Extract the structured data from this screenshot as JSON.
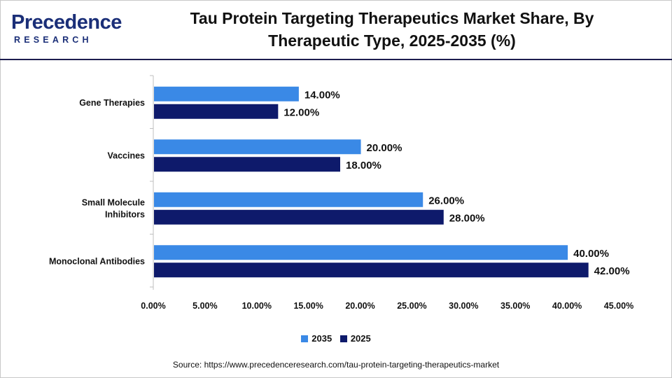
{
  "header": {
    "logo_word": "Precedence",
    "logo_sub": "RESEARCH",
    "title_line1": "Tau Protein Targeting Therapeutics Market Share, By",
    "title_line2": "Therapeutic Type, 2025-2035 (%)"
  },
  "chart_data": {
    "type": "bar",
    "orientation": "horizontal",
    "categories": [
      "Gene Therapies",
      "Vaccines",
      "Small Molecule Inhibitors",
      "Monoclonal Antibodies"
    ],
    "category_lines": [
      [
        "Gene Therapies"
      ],
      [
        "Vaccines"
      ],
      [
        "Small Molecule",
        "Inhibitors"
      ],
      [
        "Monoclonal Antibodies"
      ]
    ],
    "series": [
      {
        "name": "2035",
        "values": [
          14,
          20,
          26,
          40
        ],
        "labels": [
          "14.00%",
          "20.00%",
          "26.00%",
          "40.00%"
        ],
        "color": "#3a89e6"
      },
      {
        "name": "2025",
        "values": [
          12,
          18,
          28,
          42
        ],
        "labels": [
          "12.00%",
          "18.00%",
          "28.00%",
          "42.00%"
        ],
        "color": "#0e1a6b"
      }
    ],
    "xlim": [
      0,
      45
    ],
    "x_ticks": [
      0,
      5,
      10,
      15,
      20,
      25,
      30,
      35,
      40,
      45
    ],
    "x_tick_labels": [
      "0.00%",
      "5.00%",
      "10.00%",
      "15.00%",
      "20.00%",
      "25.00%",
      "30.00%",
      "35.00%",
      "40.00%",
      "45.00%"
    ],
    "grid": false,
    "legend_position": "bottom-center"
  },
  "legend": [
    {
      "label": "2035",
      "color": "#3a89e6"
    },
    {
      "label": "2025",
      "color": "#0e1a6b"
    }
  ],
  "source": "Source: https://www.precedenceresearch.com/tau-protein-targeting-therapeutics-market"
}
